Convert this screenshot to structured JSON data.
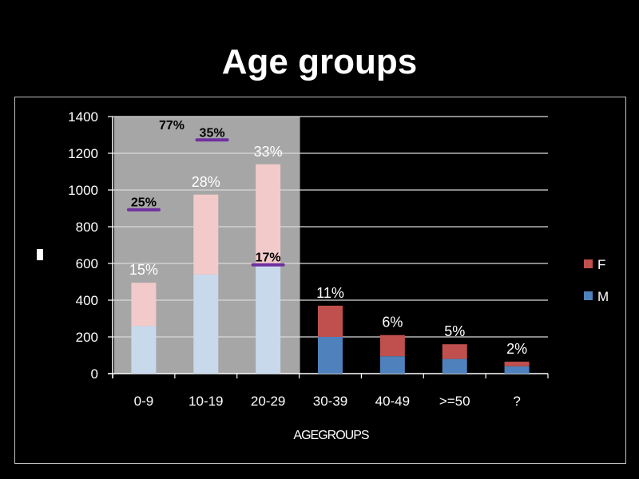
{
  "title": "Age groups",
  "chart_data": {
    "type": "bar",
    "stacked": true,
    "title": "",
    "xlabel": "AGEGROUPS",
    "ylabel": "",
    "ylim": [
      0,
      1400
    ],
    "yticks": [
      "0",
      "200",
      "400",
      "600",
      "800",
      "1000",
      "1200",
      "1400"
    ],
    "categories": [
      "0-9",
      "10-19",
      "20-29",
      "30-39",
      "40-49",
      ">=50",
      "?"
    ],
    "series": [
      {
        "name": "M",
        "color": "#4f81bd",
        "highlight_color": "#c9d9ec",
        "values": [
          260,
          540,
          600,
          200,
          95,
          80,
          40
        ]
      },
      {
        "name": "F",
        "color": "#c0504d",
        "highlight_color": "#f2caca",
        "values": [
          235,
          435,
          540,
          170,
          115,
          80,
          25
        ]
      }
    ],
    "highlighted_categories": [
      "0-9",
      "10-19",
      "20-29"
    ],
    "highlight_region_color": "#a6a6a6",
    "data_labels": [
      "15%",
      "28%",
      "33%",
      "11%",
      "6%",
      "5%",
      "2%"
    ],
    "annotations": [
      {
        "text": "77%",
        "category": "0-9",
        "offset": 0.45,
        "y": 1330,
        "underline": false
      },
      {
        "text": "35%",
        "category": "10-19",
        "offset": 0.1,
        "y": 1290,
        "underline": true
      },
      {
        "text": "25%",
        "category": "0-9",
        "offset": 0.0,
        "y": 910,
        "underline": true
      },
      {
        "text": "17%",
        "category": "20-29",
        "offset": 0.0,
        "y": 610,
        "underline": true
      }
    ],
    "annotation_underline_color": "#7030a0",
    "grid": true,
    "legend_position": "right"
  }
}
